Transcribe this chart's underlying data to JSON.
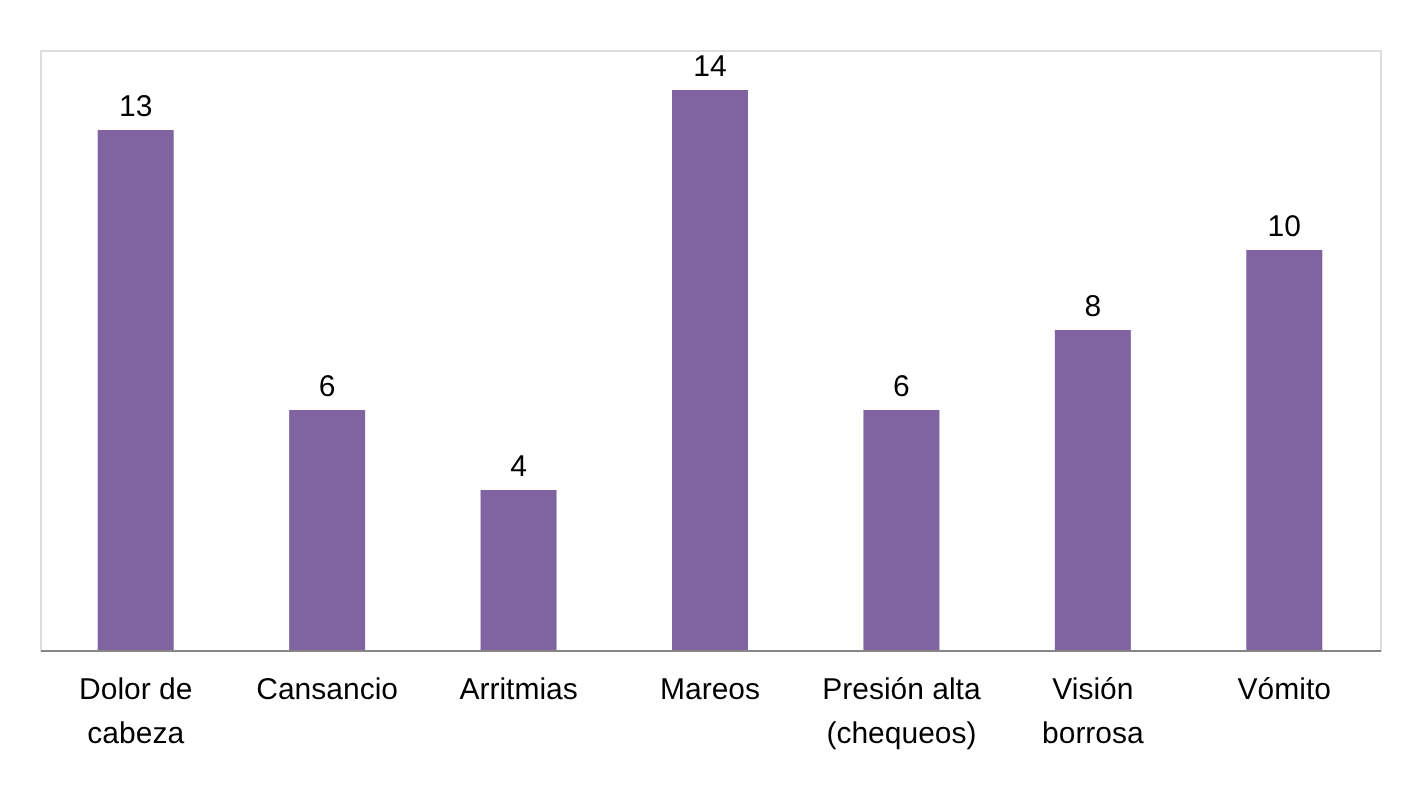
{
  "chart_data": {
    "type": "bar",
    "categories": [
      "Dolor de cabeza",
      "Cansancio",
      "Arritmias",
      "Mareos",
      "Presión alta (chequeos)",
      "Visión borrosa",
      "Vómito"
    ],
    "values": [
      13,
      6,
      4,
      14,
      6,
      8,
      10
    ],
    "color": "#8064a2",
    "ylim": [
      0,
      15
    ],
    "data_labels": true
  }
}
